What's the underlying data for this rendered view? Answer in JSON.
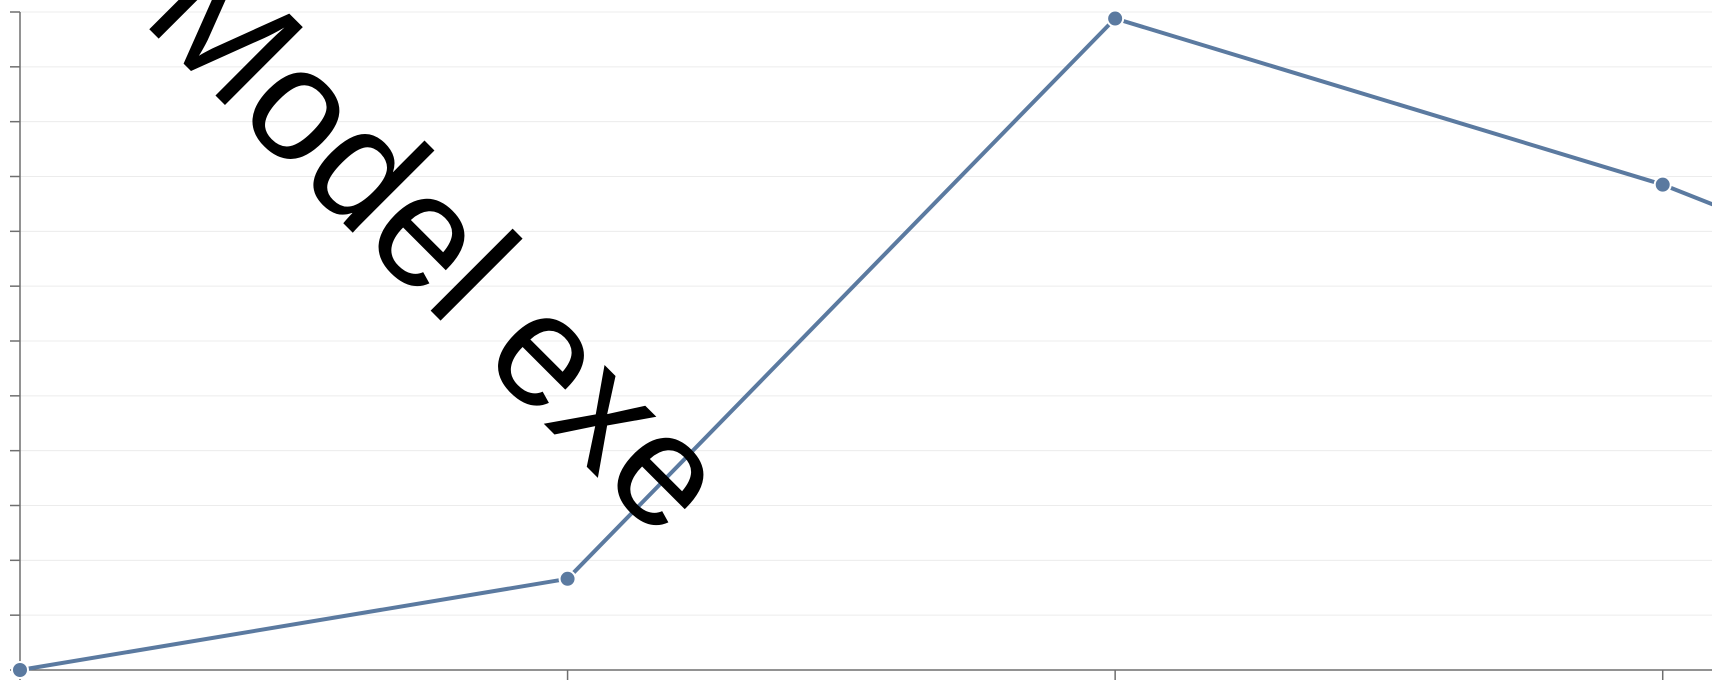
{
  "chart_data": {
    "type": "line",
    "title": "",
    "xlabel": "",
    "ylabel": "",
    "x": [
      0,
      1,
      2,
      3,
      3.09
    ],
    "y": [
      0.0,
      0.14,
      1.0,
      0.745,
      0.715
    ],
    "xlim": [
      0,
      3.09
    ],
    "ylim": [
      0,
      1.01
    ],
    "y_tick_count": 13,
    "x_tick_values": [
      0,
      1,
      2,
      3
    ],
    "grid": "horizontal",
    "line_color": "#5b7aa0",
    "point_indices": [
      0,
      1,
      2,
      3
    ],
    "overlay_text": "Model exe"
  }
}
